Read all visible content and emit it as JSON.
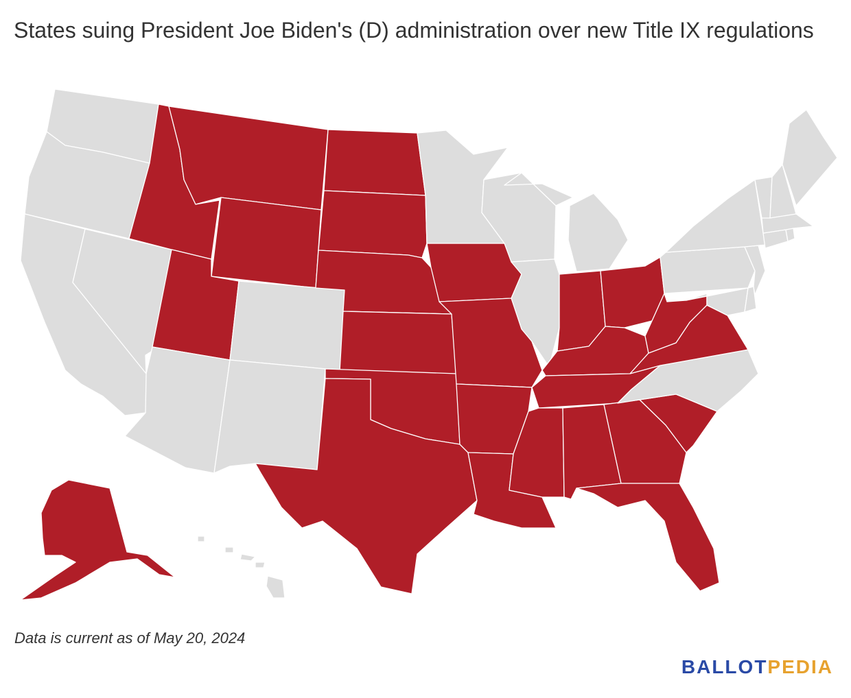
{
  "title": "States suing President Joe Biden's (D) administration over new Title IX regulations",
  "footnote": "Data is current as of May 20, 2024",
  "logo": {
    "part1": "BALLOT",
    "part2": "PEDIA",
    "color1": "#2a4aa6",
    "color2": "#e7a22f"
  },
  "map": {
    "colors": {
      "suing": "#b01e28",
      "not_suing": "#dddddd",
      "border": "#ffffff"
    },
    "states_suing": [
      "AK",
      "AL",
      "AR",
      "FL",
      "GA",
      "ID",
      "IN",
      "IA",
      "KS",
      "KY",
      "LA",
      "MS",
      "MO",
      "MT",
      "NE",
      "ND",
      "OH",
      "OK",
      "SC",
      "SD",
      "TN",
      "TX",
      "UT",
      "VA",
      "WV",
      "WY"
    ],
    "states_not_suing": [
      "AZ",
      "CA",
      "CO",
      "CT",
      "DE",
      "HI",
      "IL",
      "ME",
      "MD",
      "MA",
      "MI",
      "MN",
      "NV",
      "NH",
      "NJ",
      "NM",
      "NY",
      "NC",
      "OR",
      "PA",
      "RI",
      "VT",
      "WA",
      "WI"
    ]
  }
}
